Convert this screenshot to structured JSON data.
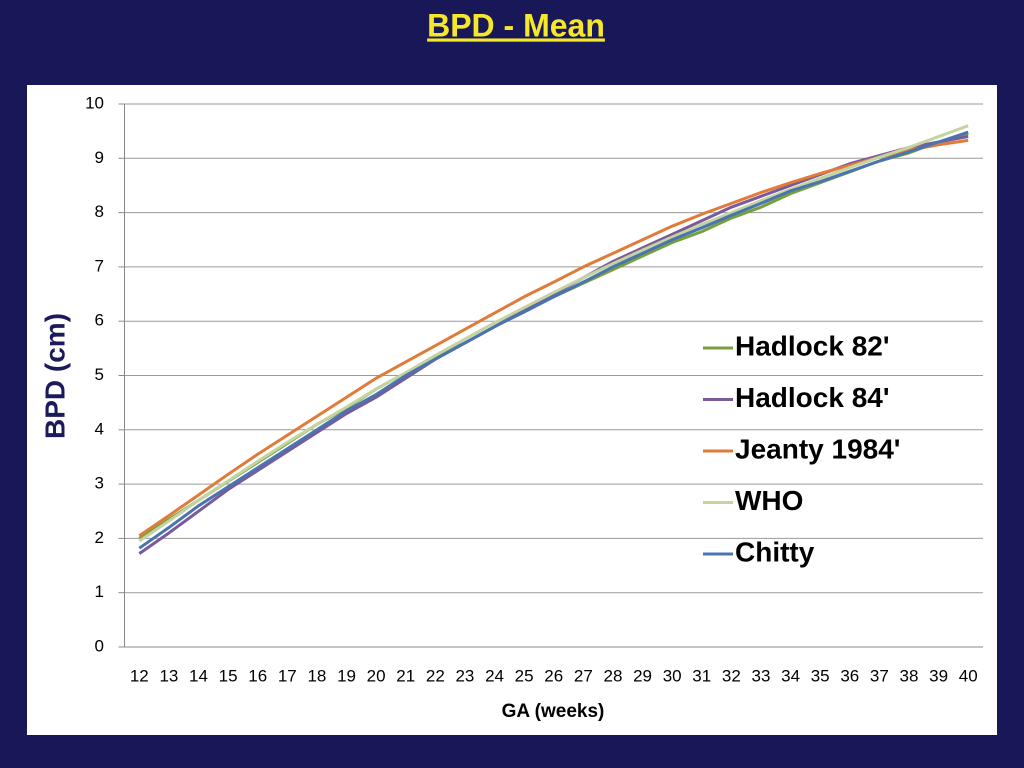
{
  "chart_data": {
    "type": "line",
    "title": "BPD - Mean",
    "x_label": "GA (weeks)",
    "y_label": "BPD (cm)",
    "categories": [
      12,
      13,
      14,
      15,
      16,
      17,
      18,
      19,
      20,
      21,
      22,
      23,
      24,
      25,
      26,
      27,
      28,
      29,
      30,
      31,
      32,
      33,
      34,
      35,
      36,
      37,
      38,
      39,
      40
    ],
    "ylim": [
      0,
      10
    ],
    "yticks": [
      0,
      1,
      2,
      3,
      4,
      5,
      6,
      7,
      8,
      9,
      10
    ],
    "grid": true,
    "series": [
      {
        "name": "Hadlock 82'",
        "color": "#77a03c",
        "values": [
          2.0,
          2.35,
          2.7,
          3.05,
          3.4,
          3.75,
          4.1,
          4.4,
          4.75,
          5.05,
          5.35,
          5.6,
          5.9,
          6.2,
          6.45,
          6.7,
          6.95,
          7.2,
          7.45,
          7.65,
          7.9,
          8.1,
          8.35,
          8.55,
          8.75,
          8.95,
          9.1,
          9.3,
          9.45
        ]
      },
      {
        "name": "Hadlock 84'",
        "color": "#7a5a9a",
        "values": [
          1.72,
          2.1,
          2.5,
          2.9,
          3.25,
          3.6,
          3.95,
          4.3,
          4.6,
          4.95,
          5.3,
          5.6,
          5.9,
          6.2,
          6.5,
          6.8,
          7.1,
          7.35,
          7.6,
          7.85,
          8.1,
          8.3,
          8.5,
          8.7,
          8.9,
          9.05,
          9.2,
          9.3,
          9.4
        ]
      },
      {
        "name": "Jeanty 1984'",
        "color": "#e07b39",
        "values": [
          2.05,
          2.42,
          2.8,
          3.18,
          3.55,
          3.9,
          4.25,
          4.6,
          4.95,
          5.25,
          5.55,
          5.85,
          6.15,
          6.45,
          6.72,
          7.0,
          7.25,
          7.5,
          7.75,
          7.97,
          8.17,
          8.37,
          8.55,
          8.72,
          8.87,
          9.02,
          9.15,
          9.25,
          9.33
        ]
      },
      {
        "name": "WHO",
        "color": "#c4d4a0",
        "values": [
          1.95,
          2.32,
          2.7,
          3.06,
          3.42,
          3.77,
          4.1,
          4.42,
          4.75,
          5.05,
          5.37,
          5.67,
          5.97,
          6.25,
          6.53,
          6.8,
          7.06,
          7.31,
          7.55,
          7.78,
          8.0,
          8.22,
          8.43,
          8.63,
          8.83,
          9.02,
          9.2,
          9.4,
          9.6
        ]
      },
      {
        "name": "Chitty",
        "color": "#4a74b0",
        "values": [
          1.82,
          2.2,
          2.6,
          2.95,
          3.3,
          3.65,
          4.0,
          4.35,
          4.65,
          5.0,
          5.3,
          5.6,
          5.9,
          6.17,
          6.45,
          6.72,
          7.0,
          7.25,
          7.5,
          7.72,
          7.95,
          8.17,
          8.4,
          8.57,
          8.76,
          8.95,
          9.12,
          9.3,
          9.48
        ]
      }
    ]
  }
}
